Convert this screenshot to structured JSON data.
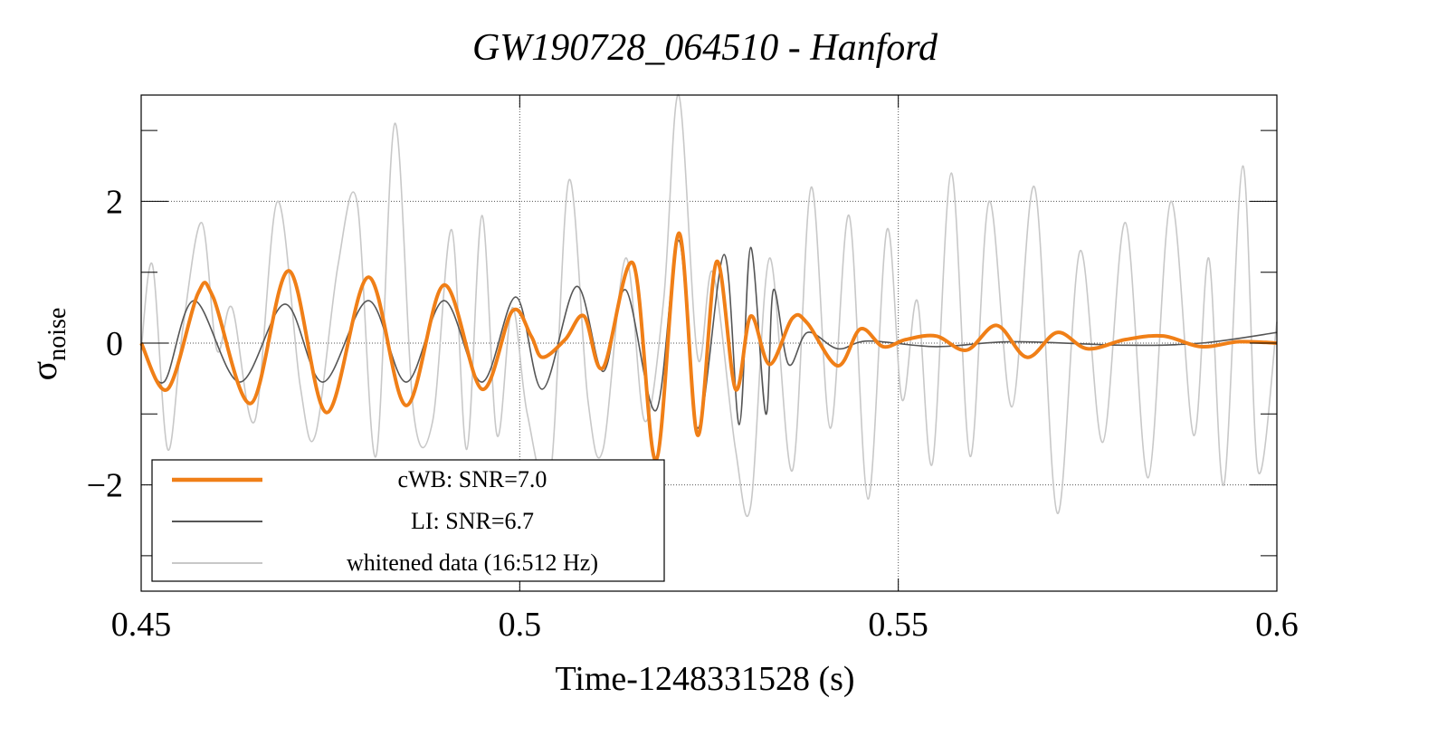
{
  "chart_data": {
    "type": "line",
    "title": "GW190728_064510 - Hanford",
    "xlabel": "Time-1248331528 (s)",
    "ylabel": "σ",
    "ylabel_sub": "noise",
    "xlim": [
      0.45,
      0.6
    ],
    "ylim": [
      -3.5,
      3.5
    ],
    "x_ticks": [
      0.45,
      0.5,
      0.55,
      0.6
    ],
    "x_tick_labels": [
      "0.45",
      "0.5",
      "0.55",
      "0.6"
    ],
    "y_ticks": [
      -2,
      0,
      2
    ],
    "y_tick_labels": [
      "−2",
      "0",
      "2"
    ],
    "grid": true,
    "legend_position": "bottom-left",
    "series": [
      {
        "name": "cWB: SNR=7.0",
        "color": "#f07f17",
        "points": [
          [
            0.45,
            0.0
          ],
          [
            0.4535,
            -0.65
          ],
          [
            0.4575,
            0.7
          ],
          [
            0.4595,
            0.65
          ],
          [
            0.4645,
            -0.85
          ],
          [
            0.4695,
            1.02
          ],
          [
            0.4745,
            -0.98
          ],
          [
            0.48,
            0.93
          ],
          [
            0.485,
            -0.88
          ],
          [
            0.49,
            0.82
          ],
          [
            0.495,
            -0.65
          ],
          [
            0.499,
            0.45
          ],
          [
            0.5015,
            0.1
          ],
          [
            0.503,
            -0.2
          ],
          [
            0.506,
            0.05
          ],
          [
            0.5085,
            0.38
          ],
          [
            0.511,
            -0.35
          ],
          [
            0.515,
            1.12
          ],
          [
            0.518,
            -1.65
          ],
          [
            0.521,
            1.55
          ],
          [
            0.5235,
            -1.3
          ],
          [
            0.526,
            1.15
          ],
          [
            0.5285,
            -0.65
          ],
          [
            0.5305,
            0.38
          ],
          [
            0.533,
            -0.3
          ],
          [
            0.536,
            0.35
          ],
          [
            0.538,
            0.28
          ],
          [
            0.542,
            -0.32
          ],
          [
            0.545,
            0.2
          ],
          [
            0.548,
            -0.05
          ],
          [
            0.551,
            0.05
          ],
          [
            0.555,
            0.1
          ],
          [
            0.559,
            -0.1
          ],
          [
            0.563,
            0.25
          ],
          [
            0.567,
            -0.2
          ],
          [
            0.571,
            0.15
          ],
          [
            0.575,
            -0.08
          ],
          [
            0.58,
            0.05
          ],
          [
            0.585,
            0.1
          ],
          [
            0.59,
            -0.05
          ],
          [
            0.595,
            0.02
          ],
          [
            0.6,
            0.0
          ]
        ]
      },
      {
        "name": "LI: SNR=6.7",
        "color": "#555555",
        "points": [
          [
            0.45,
            0.0
          ],
          [
            0.453,
            -0.55
          ],
          [
            0.457,
            0.6
          ],
          [
            0.463,
            -0.55
          ],
          [
            0.469,
            0.55
          ],
          [
            0.474,
            -0.55
          ],
          [
            0.48,
            0.6
          ],
          [
            0.485,
            -0.55
          ],
          [
            0.49,
            0.6
          ],
          [
            0.495,
            -0.55
          ],
          [
            0.4995,
            0.65
          ],
          [
            0.503,
            -0.65
          ],
          [
            0.5075,
            0.8
          ],
          [
            0.511,
            -0.4
          ],
          [
            0.514,
            0.75
          ],
          [
            0.518,
            -0.95
          ],
          [
            0.521,
            1.45
          ],
          [
            0.5235,
            -1.2
          ],
          [
            0.527,
            1.25
          ],
          [
            0.529,
            -1.15
          ],
          [
            0.5305,
            1.35
          ],
          [
            0.5325,
            -1.0
          ],
          [
            0.5335,
            0.75
          ],
          [
            0.5355,
            -0.3
          ],
          [
            0.538,
            0.15
          ],
          [
            0.542,
            -0.08
          ],
          [
            0.546,
            0.03
          ],
          [
            0.555,
            -0.05
          ],
          [
            0.565,
            0.02
          ],
          [
            0.58,
            -0.03
          ],
          [
            0.59,
            0.0
          ],
          [
            0.6,
            0.15
          ]
        ]
      },
      {
        "name": "whitened data (16:512 Hz)",
        "color": "#c8c8c8",
        "points": [
          [
            0.45,
            -0.1
          ],
          [
            0.4515,
            1.1
          ],
          [
            0.4535,
            -1.5
          ],
          [
            0.4555,
            0.2
          ],
          [
            0.458,
            1.7
          ],
          [
            0.46,
            -0.1
          ],
          [
            0.462,
            0.5
          ],
          [
            0.465,
            -1.1
          ],
          [
            0.468,
            2.0
          ],
          [
            0.471,
            -0.6
          ],
          [
            0.473,
            -1.3
          ],
          [
            0.476,
            1.1
          ],
          [
            0.4785,
            2.0
          ],
          [
            0.481,
            -1.6
          ],
          [
            0.4835,
            3.1
          ],
          [
            0.486,
            -1.0
          ],
          [
            0.4885,
            -1.1
          ],
          [
            0.491,
            1.6
          ],
          [
            0.493,
            -1.5
          ],
          [
            0.495,
            1.8
          ],
          [
            0.497,
            -1.3
          ],
          [
            0.499,
            0.5
          ],
          [
            0.501,
            -1.0
          ],
          [
            0.504,
            -1.9
          ],
          [
            0.5065,
            2.3
          ],
          [
            0.509,
            -0.8
          ],
          [
            0.511,
            -1.5
          ],
          [
            0.514,
            1.2
          ],
          [
            0.5165,
            -1.1
          ],
          [
            0.519,
            0.6
          ],
          [
            0.521,
            3.5
          ],
          [
            0.5235,
            -0.2
          ],
          [
            0.5255,
            1.0
          ],
          [
            0.5285,
            -1.5
          ],
          [
            0.5305,
            -2.3
          ],
          [
            0.533,
            1.2
          ],
          [
            0.536,
            -1.8
          ],
          [
            0.5385,
            2.2
          ],
          [
            0.541,
            -1.2
          ],
          [
            0.5435,
            1.8
          ],
          [
            0.546,
            -2.2
          ],
          [
            0.5485,
            1.6
          ],
          [
            0.5505,
            -0.8
          ],
          [
            0.5525,
            0.6
          ],
          [
            0.5545,
            -1.7
          ],
          [
            0.557,
            2.4
          ],
          [
            0.5595,
            -1.6
          ],
          [
            0.562,
            2.0
          ],
          [
            0.565,
            -0.9
          ],
          [
            0.568,
            2.2
          ],
          [
            0.571,
            -2.4
          ],
          [
            0.574,
            1.3
          ],
          [
            0.577,
            -1.4
          ],
          [
            0.58,
            1.7
          ],
          [
            0.583,
            -1.9
          ],
          [
            0.586,
            2.0
          ],
          [
            0.589,
            -1.3
          ],
          [
            0.591,
            1.2
          ],
          [
            0.593,
            -2.0
          ],
          [
            0.5955,
            2.5
          ],
          [
            0.5975,
            -1.8
          ],
          [
            0.6,
            0.3
          ]
        ]
      }
    ]
  }
}
